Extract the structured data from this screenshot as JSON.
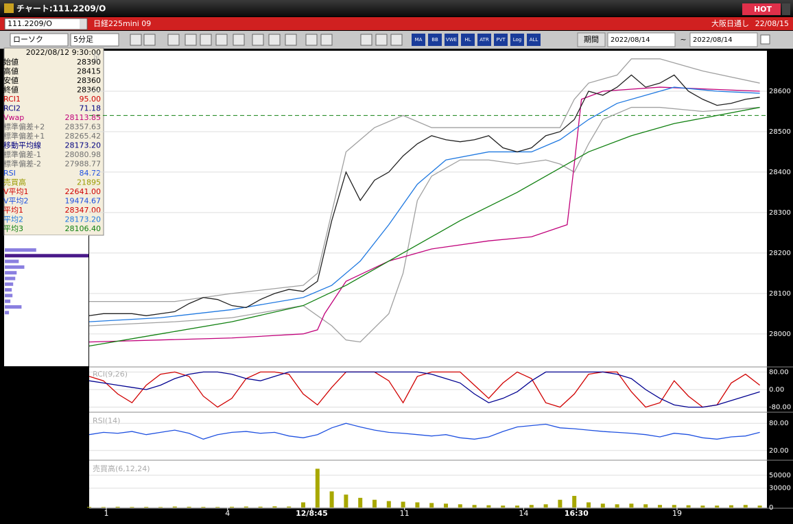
{
  "window": {
    "title": "チャート:111.2209/O",
    "hot": "HOT"
  },
  "header": {
    "symbol": "111.2209/O",
    "name": "日経225mini 09",
    "market": "大阪日通し",
    "date": "22/08/15"
  },
  "toolbar": {
    "chart_type": "ローソク",
    "interval": "5分足",
    "buttons": [
      "MA",
      "BB",
      "VWE",
      "HL",
      "ATR",
      "PVT",
      "Log",
      "ALL"
    ],
    "period": "期間",
    "from": "2022/08/14",
    "separator": "~",
    "to": "2022/08/14"
  },
  "info_panel": {
    "datetime": "2022/08/12 9:30:00",
    "rows": [
      {
        "label": "始値",
        "value": "28390",
        "color": "#000000"
      },
      {
        "label": "高値",
        "value": "28415",
        "color": "#000000"
      },
      {
        "label": "安値",
        "value": "28360",
        "color": "#000000"
      },
      {
        "label": "終値",
        "value": "28360",
        "color": "#000000"
      },
      {
        "label": "RCI1",
        "value": "95.00",
        "color": "#d00000"
      },
      {
        "label": "RCI2",
        "value": "71.18",
        "color": "#000080"
      },
      {
        "label": "Vwap",
        "value": "28113.85",
        "color": "#c0007a"
      },
      {
        "label": "標準偏差+2",
        "value": "28357.63",
        "color": "#707070"
      },
      {
        "label": "標準偏差+1",
        "value": "28265.42",
        "color": "#707070"
      },
      {
        "label": "移動平均線",
        "value": "28173.20",
        "color": "#000080"
      },
      {
        "label": "標準偏差-1",
        "value": "28080.98",
        "color": "#707070"
      },
      {
        "label": "標準偏差-2",
        "value": "27988.77",
        "color": "#707070"
      },
      {
        "label": "RSI",
        "value": "84.72",
        "color": "#1e50e0"
      },
      {
        "label": "売買高",
        "value": "21895",
        "color": "#9a9a00"
      },
      {
        "label": "V平均1",
        "value": "22641.00",
        "color": "#d00000"
      },
      {
        "label": "V平均2",
        "value": "19474.67",
        "color": "#1e50e0"
      },
      {
        "label": "平均1",
        "value": "28347.00",
        "color": "#d00000"
      },
      {
        "label": "平均2",
        "value": "28173.20",
        "color": "#1e78e0"
      },
      {
        "label": "平均3",
        "value": "28106.40",
        "color": "#108010"
      }
    ]
  },
  "volume_profile": {
    "values": [
      45,
      120,
      20,
      28,
      17,
      15,
      12,
      10,
      11,
      8,
      24,
      6
    ],
    "xlim": [
      0,
      120
    ],
    "colors": [
      "#8a7fe0",
      "#4a1a8a"
    ]
  },
  "chart_data": [
    {
      "type": "line",
      "label": "足",
      "xlim": [
        0,
        95
      ],
      "ylim": [
        27920,
        28700
      ],
      "yticks": [
        28000,
        28100,
        28200,
        28300,
        28400,
        28500,
        28600
      ],
      "reference_line": 28540,
      "reference_color": "#108010",
      "series": [
        {
          "color": "#a0a0a0",
          "x": [
            0,
            12,
            20,
            30,
            32,
            36,
            40,
            44,
            48,
            60,
            66,
            68,
            70,
            74,
            76,
            80,
            86,
            94
          ],
          "values": [
            28080,
            28080,
            28100,
            28120,
            28150,
            28450,
            28510,
            28540,
            28510,
            28510,
            28510,
            28580,
            28620,
            28640,
            28680,
            28680,
            28650,
            28620
          ]
        },
        {
          "color": "#a0a0a0",
          "x": [
            0,
            12,
            20,
            30,
            34,
            36,
            38,
            42,
            44,
            46,
            48,
            52,
            56,
            60,
            64,
            66,
            68,
            70,
            72,
            76,
            80,
            86,
            94
          ],
          "values": [
            28020,
            28030,
            28040,
            28070,
            28020,
            27985,
            27980,
            28050,
            28150,
            28330,
            28390,
            28430,
            28430,
            28420,
            28430,
            28420,
            28400,
            28470,
            28530,
            28560,
            28560,
            28550,
            28560
          ]
        },
        {
          "color": "#c0007a",
          "x": [
            0,
            20,
            30,
            32,
            33,
            36,
            42,
            48,
            56,
            62,
            67,
            68,
            69,
            72,
            80,
            94
          ],
          "values": [
            27980,
            27990,
            28000,
            28010,
            28050,
            28130,
            28180,
            28210,
            28230,
            28240,
            28270,
            28420,
            28580,
            28600,
            28610,
            28600
          ]
        },
        {
          "color": "#108010",
          "x": [
            0,
            10,
            20,
            30,
            36,
            44,
            52,
            60,
            66,
            70,
            76,
            82,
            88,
            94
          ],
          "values": [
            27970,
            28000,
            28030,
            28070,
            28120,
            28200,
            28280,
            28350,
            28410,
            28450,
            28490,
            28520,
            28540,
            28560
          ]
        },
        {
          "color": "#1e78e0",
          "x": [
            0,
            10,
            20,
            30,
            34,
            38,
            42,
            46,
            50,
            56,
            62,
            66,
            70,
            74,
            78,
            82,
            88,
            94
          ],
          "values": [
            28030,
            28040,
            28060,
            28090,
            28120,
            28180,
            28270,
            28370,
            28430,
            28450,
            28450,
            28480,
            28530,
            28570,
            28590,
            28610,
            28600,
            28595
          ]
        },
        {
          "color": "#202020",
          "x": [
            0,
            2,
            4,
            6,
            8,
            10,
            12,
            14,
            16,
            18,
            20,
            22,
            24,
            26,
            28,
            30,
            32,
            34,
            36,
            38,
            40,
            42,
            44,
            46,
            48,
            50,
            52,
            54,
            56,
            58,
            60,
            62,
            64,
            66,
            68,
            70,
            72,
            74,
            76,
            78,
            80,
            82,
            84,
            86,
            88,
            90,
            92,
            94
          ],
          "values": [
            28045,
            28050,
            28050,
            28050,
            28045,
            28050,
            28055,
            28075,
            28090,
            28085,
            28070,
            28065,
            28085,
            28100,
            28110,
            28105,
            28130,
            28280,
            28400,
            28330,
            28380,
            28400,
            28440,
            28470,
            28490,
            28480,
            28475,
            28480,
            28490,
            28460,
            28450,
            28460,
            28490,
            28500,
            28530,
            28600,
            28590,
            28610,
            28640,
            28610,
            28620,
            28640,
            28600,
            28580,
            28565,
            28570,
            28580,
            28585
          ]
        }
      ]
    },
    {
      "type": "line",
      "label": "RCI(9,26)",
      "xlim": [
        0,
        95
      ],
      "ylim": [
        -100,
        100
      ],
      "yticks": [
        {
          "value": 80,
          "label": "80.00"
        },
        {
          "value": 0,
          "label": "0.00"
        },
        {
          "value": -80,
          "label": "-80.00"
        }
      ],
      "series": [
        {
          "color": "#d00000",
          "x": [
            0,
            2,
            4,
            6,
            8,
            10,
            12,
            14,
            16,
            18,
            20,
            22,
            24,
            26,
            28,
            30,
            32,
            34,
            36,
            38,
            40,
            42,
            44,
            46,
            48,
            50,
            52,
            54,
            56,
            58,
            60,
            62,
            64,
            66,
            68,
            70,
            72,
            74,
            76,
            78,
            80,
            82,
            84,
            86,
            88,
            90,
            92,
            94
          ],
          "values": [
            60,
            40,
            -20,
            -60,
            20,
            70,
            80,
            60,
            -30,
            -80,
            -40,
            50,
            80,
            80,
            70,
            -20,
            -70,
            10,
            80,
            80,
            80,
            40,
            -60,
            60,
            80,
            80,
            80,
            20,
            -40,
            30,
            80,
            50,
            -60,
            -80,
            -20,
            70,
            80,
            80,
            -10,
            -80,
            -60,
            40,
            -30,
            -80,
            -70,
            30,
            70,
            20
          ]
        },
        {
          "color": "#000090",
          "x": [
            0,
            2,
            4,
            6,
            8,
            10,
            12,
            14,
            16,
            18,
            20,
            22,
            24,
            26,
            28,
            30,
            32,
            34,
            36,
            38,
            40,
            42,
            44,
            46,
            48,
            50,
            52,
            54,
            56,
            58,
            60,
            62,
            64,
            66,
            68,
            70,
            72,
            74,
            76,
            78,
            80,
            82,
            84,
            86,
            88,
            90,
            92,
            94
          ],
          "values": [
            40,
            30,
            20,
            10,
            0,
            20,
            50,
            70,
            80,
            80,
            70,
            50,
            40,
            60,
            80,
            80,
            80,
            80,
            80,
            80,
            80,
            80,
            80,
            80,
            70,
            50,
            30,
            -20,
            -60,
            -40,
            -10,
            40,
            80,
            80,
            80,
            80,
            80,
            70,
            50,
            0,
            -40,
            -70,
            -80,
            -80,
            -70,
            -50,
            -30,
            -10
          ]
        }
      ]
    },
    {
      "type": "line",
      "label": "RSI(14)",
      "xlim": [
        0,
        95
      ],
      "ylim": [
        0,
        100
      ],
      "yticks": [
        {
          "value": 80,
          "label": "80.00"
        },
        {
          "value": 20,
          "label": "20.00"
        }
      ],
      "series": [
        {
          "color": "#1e50e0",
          "x": [
            0,
            2,
            4,
            6,
            8,
            10,
            12,
            14,
            16,
            18,
            20,
            22,
            24,
            26,
            28,
            30,
            32,
            34,
            36,
            38,
            40,
            42,
            44,
            46,
            48,
            50,
            52,
            54,
            56,
            58,
            60,
            62,
            64,
            66,
            68,
            70,
            72,
            74,
            76,
            78,
            80,
            82,
            84,
            86,
            88,
            90,
            92,
            94
          ],
          "values": [
            55,
            60,
            58,
            62,
            55,
            60,
            65,
            58,
            45,
            55,
            60,
            62,
            58,
            60,
            52,
            48,
            55,
            70,
            80,
            72,
            65,
            60,
            58,
            55,
            52,
            55,
            48,
            45,
            50,
            62,
            72,
            75,
            78,
            70,
            68,
            65,
            62,
            60,
            58,
            55,
            50,
            58,
            55,
            48,
            45,
            50,
            52,
            60
          ]
        }
      ]
    },
    {
      "type": "bar",
      "label": "売買高(6,12,24)",
      "xlim": [
        0,
        95
      ],
      "ylim": [
        0,
        70000
      ],
      "yticks": [
        0,
        30000,
        50000
      ],
      "color": "#a8a800",
      "x": [
        0,
        2,
        4,
        6,
        8,
        10,
        12,
        14,
        16,
        18,
        20,
        22,
        24,
        26,
        28,
        30,
        32,
        34,
        36,
        38,
        40,
        42,
        44,
        46,
        48,
        50,
        52,
        54,
        56,
        58,
        60,
        62,
        64,
        66,
        68,
        70,
        72,
        74,
        76,
        78,
        80,
        82,
        84,
        86,
        88,
        90,
        92,
        94
      ],
      "values": [
        1000,
        800,
        1200,
        900,
        1000,
        800,
        1500,
        1200,
        1000,
        900,
        1200,
        1500,
        1300,
        1800,
        1500,
        8000,
        60000,
        25000,
        20000,
        15000,
        12000,
        10000,
        9000,
        8000,
        7000,
        6000,
        5000,
        4000,
        3500,
        3000,
        3000,
        4000,
        5000,
        12000,
        18000,
        8000,
        6000,
        5000,
        6000,
        5000,
        4000,
        4000,
        3500,
        3000,
        3000,
        3500,
        4000,
        3000
      ],
      "xticks": [
        {
          "value": 2.4,
          "label": "1"
        },
        {
          "value": 19.4,
          "label": "4"
        },
        {
          "value": 31.2,
          "label": "12/8:45",
          "bold": true
        },
        {
          "value": 44.2,
          "label": "11"
        },
        {
          "value": 60.9,
          "label": "14"
        },
        {
          "value": 68.3,
          "label": "16:30",
          "bold": true
        },
        {
          "value": 82.4,
          "label": "19"
        }
      ]
    }
  ]
}
